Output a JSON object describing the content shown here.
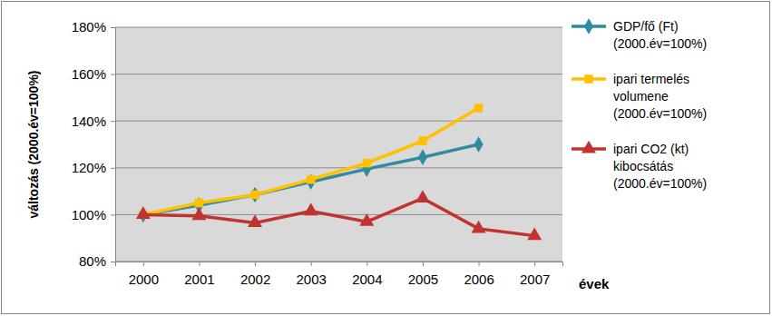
{
  "chart_data": {
    "type": "line",
    "x_label": "évek",
    "y_label": "változás (2000.év=100%)",
    "categories": [
      "2000",
      "2001",
      "2002",
      "2003",
      "2004",
      "2005",
      "2006",
      "2007"
    ],
    "series": [
      {
        "name": "GDP/fő (Ft) (2000.év=100%)",
        "color": "#2f8ba2",
        "marker": "diamond",
        "line_style": "solid",
        "values": [
          100,
          104,
          108.5,
          114,
          119.5,
          124.5,
          130,
          null
        ]
      },
      {
        "name": "ipari termelés volumene (2000.év=100%)",
        "color": "#ffc000",
        "marker": "square",
        "line_style": "solid",
        "values": [
          100,
          105,
          108.5,
          115,
          122,
          131.5,
          145.5,
          null
        ]
      },
      {
        "name": "ipari CO2 (kt) kibocsátás (2000.év=100%)",
        "color": "#c0332f",
        "marker": "triangle",
        "line_style": "solid",
        "values": [
          100,
          99.5,
          96.5,
          101.5,
          97,
          107,
          94,
          91
        ]
      }
    ],
    "ylim": [
      80,
      180
    ],
    "yticks": [
      {
        "value": 80,
        "label": "80%"
      },
      {
        "value": 100,
        "label": "100%"
      },
      {
        "value": 120,
        "label": "120%"
      },
      {
        "value": 140,
        "label": "140%"
      },
      {
        "value": 160,
        "label": "160%"
      },
      {
        "value": 180,
        "label": "180%"
      }
    ],
    "grid": true,
    "legend": "right"
  }
}
